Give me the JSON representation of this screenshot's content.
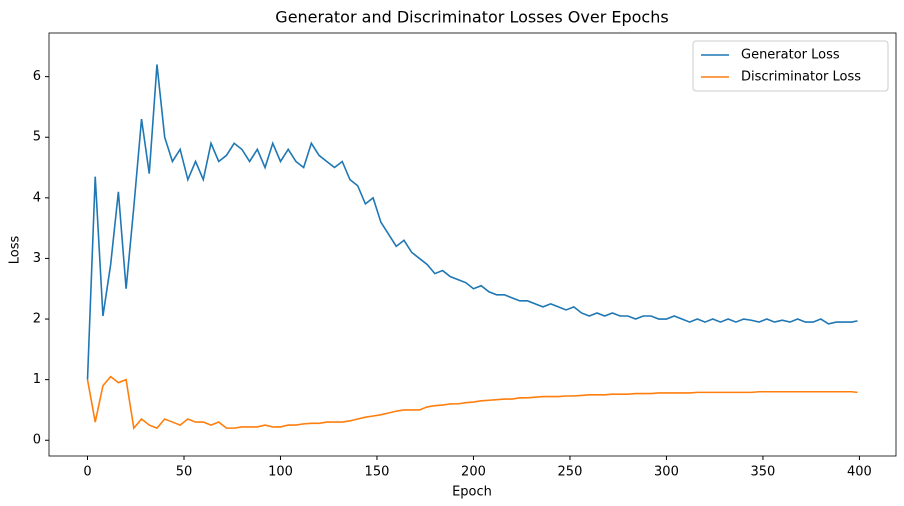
{
  "chart_data": {
    "type": "line",
    "title": "Generator and Discriminator Losses Over Epochs",
    "xlabel": "Epoch",
    "ylabel": "Loss",
    "x": [
      0,
      4,
      8,
      12,
      16,
      20,
      24,
      28,
      32,
      36,
      40,
      44,
      48,
      52,
      56,
      60,
      64,
      68,
      72,
      76,
      80,
      84,
      88,
      92,
      96,
      100,
      104,
      108,
      112,
      116,
      120,
      124,
      128,
      132,
      136,
      140,
      144,
      148,
      152,
      156,
      160,
      164,
      168,
      172,
      176,
      180,
      184,
      188,
      192,
      196,
      200,
      204,
      208,
      212,
      216,
      220,
      224,
      228,
      232,
      236,
      240,
      244,
      248,
      252,
      256,
      260,
      264,
      268,
      272,
      276,
      280,
      284,
      288,
      292,
      296,
      300,
      304,
      308,
      312,
      316,
      320,
      324,
      328,
      332,
      336,
      340,
      344,
      348,
      352,
      356,
      360,
      364,
      368,
      372,
      376,
      380,
      384,
      388,
      392,
      396,
      399
    ],
    "series": [
      {
        "name": "Generator Loss",
        "color": "#1f77b4",
        "values": [
          1.0,
          4.35,
          2.05,
          2.9,
          4.1,
          2.5,
          3.85,
          5.3,
          4.4,
          6.2,
          5.0,
          4.6,
          4.8,
          4.3,
          4.6,
          4.3,
          4.9,
          4.6,
          4.7,
          4.9,
          4.8,
          4.6,
          4.8,
          4.5,
          4.9,
          4.6,
          4.8,
          4.6,
          4.5,
          4.9,
          4.7,
          4.6,
          4.5,
          4.6,
          4.3,
          4.2,
          3.9,
          4.0,
          3.6,
          3.4,
          3.2,
          3.3,
          3.1,
          3.0,
          2.9,
          2.75,
          2.8,
          2.7,
          2.65,
          2.6,
          2.5,
          2.55,
          2.45,
          2.4,
          2.4,
          2.35,
          2.3,
          2.3,
          2.25,
          2.2,
          2.25,
          2.2,
          2.15,
          2.2,
          2.1,
          2.05,
          2.1,
          2.05,
          2.1,
          2.05,
          2.05,
          2.0,
          2.05,
          2.05,
          2.0,
          2.0,
          2.05,
          2.0,
          1.95,
          2.0,
          1.95,
          2.0,
          1.95,
          2.0,
          1.95,
          2.0,
          1.98,
          1.95,
          2.0,
          1.95,
          1.98,
          1.95,
          2.0,
          1.95,
          1.95,
          2.0,
          1.92,
          1.95,
          1.95,
          1.95,
          1.97
        ]
      },
      {
        "name": "Discriminator Loss",
        "color": "#ff7f0e",
        "values": [
          1.0,
          0.3,
          0.9,
          1.05,
          0.95,
          1.0,
          0.2,
          0.35,
          0.25,
          0.2,
          0.35,
          0.3,
          0.25,
          0.35,
          0.3,
          0.3,
          0.25,
          0.3,
          0.2,
          0.2,
          0.22,
          0.22,
          0.22,
          0.25,
          0.22,
          0.22,
          0.25,
          0.25,
          0.27,
          0.28,
          0.28,
          0.3,
          0.3,
          0.3,
          0.32,
          0.35,
          0.38,
          0.4,
          0.42,
          0.45,
          0.48,
          0.5,
          0.5,
          0.5,
          0.55,
          0.57,
          0.58,
          0.6,
          0.6,
          0.62,
          0.63,
          0.65,
          0.66,
          0.67,
          0.68,
          0.68,
          0.7,
          0.7,
          0.71,
          0.72,
          0.72,
          0.72,
          0.73,
          0.73,
          0.74,
          0.75,
          0.75,
          0.75,
          0.76,
          0.76,
          0.76,
          0.77,
          0.77,
          0.77,
          0.78,
          0.78,
          0.78,
          0.78,
          0.78,
          0.79,
          0.79,
          0.79,
          0.79,
          0.79,
          0.79,
          0.79,
          0.79,
          0.8,
          0.8,
          0.8,
          0.8,
          0.8,
          0.8,
          0.8,
          0.8,
          0.8,
          0.8,
          0.8,
          0.8,
          0.8,
          0.79
        ]
      }
    ],
    "xlim": [
      -19.95,
      418.95
    ],
    "ylim": [
      -0.26,
      6.72
    ],
    "xticks": [
      0,
      50,
      100,
      150,
      200,
      250,
      300,
      350,
      400
    ],
    "yticks": [
      0,
      1,
      2,
      3,
      4,
      5,
      6
    ],
    "grid": false,
    "legend": "upper right"
  }
}
